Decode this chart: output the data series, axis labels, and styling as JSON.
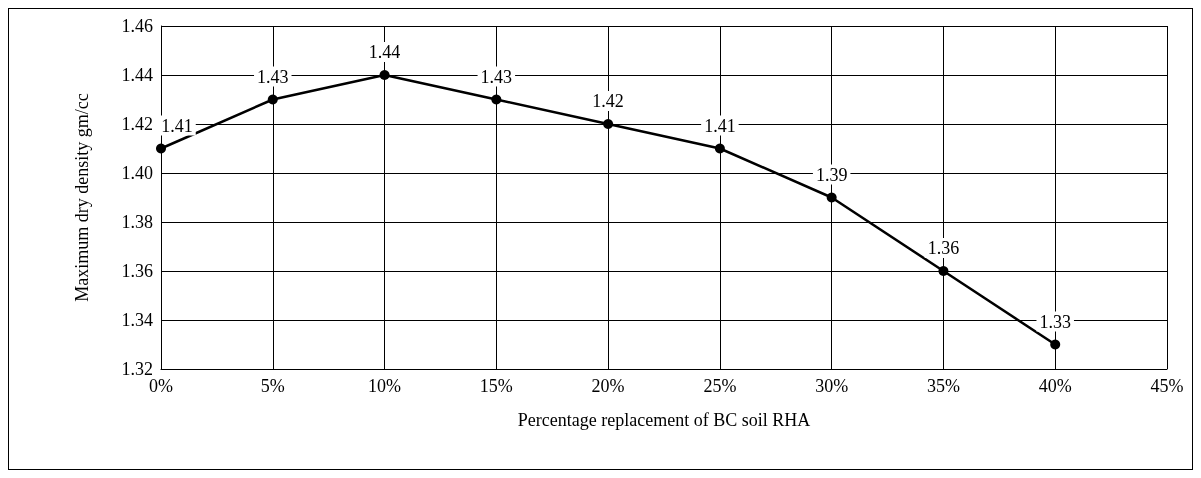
{
  "chart_data": {
    "type": "line",
    "xlabel": "Percentage replacement of BC soil RHA",
    "ylabel": "Maximum dry density gm/cc",
    "x": [
      0,
      5,
      10,
      15,
      20,
      25,
      30,
      35,
      40
    ],
    "series": [
      {
        "color": "#000000",
        "values": [
          1.41,
          1.43,
          1.44,
          1.43,
          1.42,
          1.41,
          1.39,
          1.36,
          1.33
        ]
      }
    ],
    "xlim": [
      0,
      45
    ],
    "xticks": [
      {
        "value": 0,
        "label": "0%"
      },
      {
        "value": 5,
        "label": "5%"
      },
      {
        "value": 10,
        "label": "10%"
      },
      {
        "value": 15,
        "label": "15%"
      },
      {
        "value": 20,
        "label": "20%"
      },
      {
        "value": 25,
        "label": "25%"
      },
      {
        "value": 30,
        "label": "30%"
      },
      {
        "value": 35,
        "label": "35%"
      },
      {
        "value": 40,
        "label": "40%"
      },
      {
        "value": 45,
        "label": "45%"
      }
    ],
    "ylim": [
      1.32,
      1.46
    ],
    "yticks": [
      {
        "value": 1.32,
        "label": "1.32"
      },
      1.34,
      1.36,
      1.38,
      {
        "value": 1.4,
        "label": "1.40"
      },
      1.42,
      1.44,
      1.46
    ],
    "grid": true,
    "marker": "circle",
    "line_style": "solid",
    "data_labels": true
  }
}
